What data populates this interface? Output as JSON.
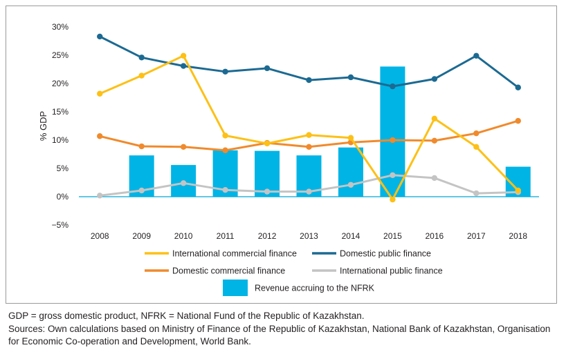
{
  "notes": {
    "abbreviations": "GDP = gross domestic product, NFRK = National Fund of the Republic of Kazakhstan.",
    "sources": "Sources: Own calculations based on Ministry of Finance of the Republic of Kazakhstan, National Bank of Kazakhstan, Organisation for Economic Co-operation and Development, World Bank."
  },
  "chart_data": {
    "type": "line",
    "title": "",
    "xlabel": "",
    "ylabel": "% GDP",
    "categories": [
      "2008",
      "2009",
      "2010",
      "2011",
      "2012",
      "2013",
      "2014",
      "2015",
      "2016",
      "2017",
      "2018"
    ],
    "ylim": [
      -5,
      30
    ],
    "yticks": [
      -5,
      0,
      5,
      10,
      15,
      20,
      25,
      30
    ],
    "ytick_labels": [
      "−5%",
      "0%",
      "5%",
      "10%",
      "15%",
      "20%",
      "25%",
      "30%"
    ],
    "grid": false,
    "legend_position": "bottom",
    "bar_series": {
      "name": "Revenue accruing to the NFRK",
      "color": "#00b4e6",
      "values": [
        null,
        7.3,
        5.6,
        8.2,
        8.1,
        7.3,
        8.7,
        23.0,
        null,
        null,
        5.3
      ]
    },
    "series": [
      {
        "name": "Domestic public finance",
        "color": "#1c6a92",
        "values": [
          28.3,
          24.6,
          23.1,
          22.1,
          22.7,
          20.6,
          21.1,
          19.5,
          20.8,
          24.9,
          19.3
        ]
      },
      {
        "name": "International commercial finance",
        "color": "#fdc016",
        "values": [
          18.2,
          21.4,
          24.9,
          10.8,
          9.4,
          10.9,
          10.4,
          -0.5,
          13.8,
          8.8,
          1.1
        ]
      },
      {
        "name": "Domestic commercial finance",
        "color": "#f08a2c",
        "values": [
          10.7,
          8.9,
          8.8,
          8.2,
          9.5,
          8.8,
          9.6,
          10.0,
          9.9,
          11.2,
          13.4
        ]
      },
      {
        "name": "International public finance",
        "color": "#c4c4c4",
        "values": [
          0.2,
          1.1,
          2.4,
          1.2,
          0.9,
          0.9,
          2.1,
          3.8,
          3.3,
          0.6,
          0.8
        ]
      }
    ],
    "legend": [
      {
        "label": "International commercial finance",
        "color": "#fdc016",
        "kind": "line"
      },
      {
        "label": "Domestic public finance",
        "color": "#1c6a92",
        "kind": "line"
      },
      {
        "label": "Domestic commercial finance",
        "color": "#f08a2c",
        "kind": "line"
      },
      {
        "label": "International public finance",
        "color": "#c4c4c4",
        "kind": "line"
      },
      {
        "label": "Revenue accruing to the NFRK",
        "color": "#00b4e6",
        "kind": "bar"
      }
    ]
  }
}
